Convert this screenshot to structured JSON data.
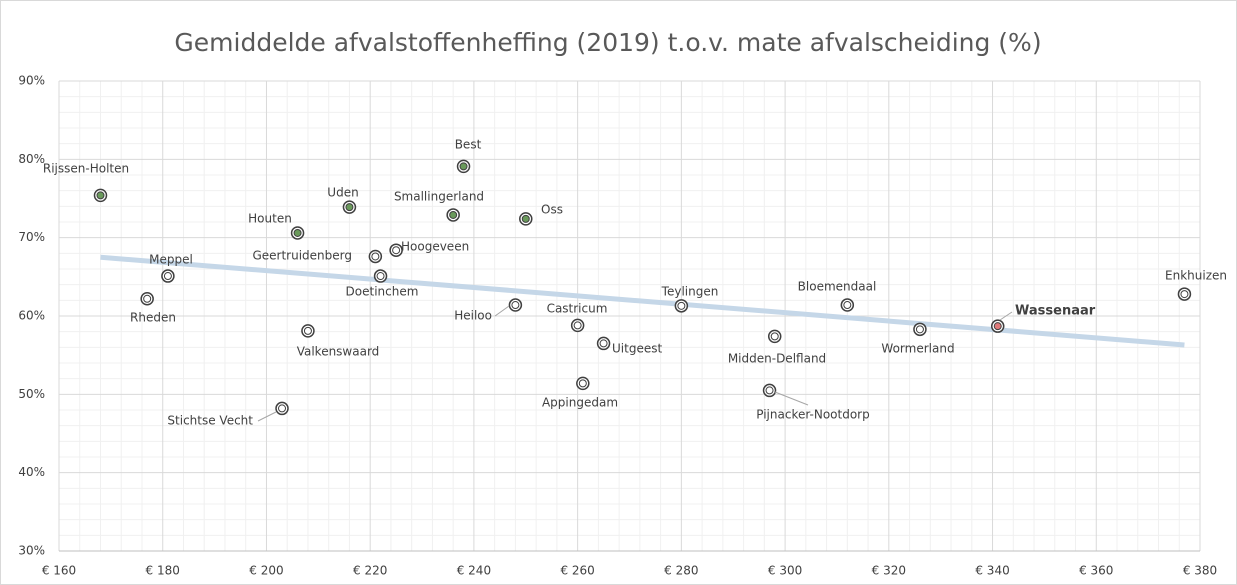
{
  "chart_data": {
    "type": "scatter",
    "title": "Gemiddelde afvalstoffenheffing (2019) t.o.v. mate afvalscheiding (%)",
    "series": [
      {
        "names": [
          "Rijssen-Holten",
          "Rheden",
          "Meppel",
          "Houten",
          "Uden",
          "Valkenswaard",
          "Stichtse Vecht",
          "Geertruidenberg",
          "Hoogeveen",
          "Doetinchem",
          "Smallingerland",
          "Best",
          "Oss",
          "Heiloo",
          "Castricum",
          "Uitgeest",
          "Appingedam",
          "Teylingen",
          "Midden-Delfland",
          "Pijnacker-Nootdorp",
          "Bloemendaal",
          "Wormerland",
          "Wassenaar",
          "Enkhuizen"
        ],
        "x": [
          168,
          177,
          181,
          206,
          216,
          208,
          203,
          221,
          225,
          222,
          236,
          238,
          250,
          248,
          260,
          265,
          261,
          280,
          298,
          297,
          312,
          326,
          341,
          377
        ],
        "values": [
          75.4,
          62.2,
          65.1,
          70.6,
          73.9,
          58.1,
          48.2,
          67.6,
          68.4,
          65.1,
          72.9,
          79.1,
          72.4,
          61.4,
          58.8,
          56.5,
          51.4,
          61.3,
          57.4,
          50.5,
          61.4,
          58.3,
          58.7,
          62.8
        ],
        "colors": [
          "#6a9a5b",
          "#ffffff",
          "#ffffff",
          "#6a9a5b",
          "#6a9a5b",
          "#ffffff",
          "#ffffff",
          "#ffffff",
          "#ffffff",
          "#ffffff",
          "#6a9a5b",
          "#6a9a5b",
          "#6a9a5b",
          "#ffffff",
          "#ffffff",
          "#ffffff",
          "#ffffff",
          "#ffffff",
          "#ffffff",
          "#ffffff",
          "#ffffff",
          "#ffffff",
          "#e07a7a",
          "#ffffff"
        ]
      }
    ],
    "trendline": {
      "x": [
        168,
        377
      ],
      "values": [
        67.5,
        56.3
      ],
      "color": "#c5d7e8"
    },
    "xlim": [
      160,
      380
    ],
    "xticks": [
      {
        "value": 160,
        "label": "€ 160"
      },
      {
        "value": 180,
        "label": "€ 180"
      },
      {
        "value": 200,
        "label": "€ 200"
      },
      {
        "value": 220,
        "label": "€ 220"
      },
      {
        "value": 240,
        "label": "€ 240"
      },
      {
        "value": 260,
        "label": "€ 260"
      },
      {
        "value": 280,
        "label": "€ 280"
      },
      {
        "value": 300,
        "label": "€ 300"
      },
      {
        "value": 320,
        "label": "€ 320"
      },
      {
        "value": 340,
        "label": "€ 340"
      },
      {
        "value": 360,
        "label": "€ 360"
      },
      {
        "value": 380,
        "label": "€ 380"
      }
    ],
    "ylim": [
      30,
      90
    ],
    "yticks": [
      {
        "value": 30,
        "label": "30%"
      },
      {
        "value": 40,
        "label": "40%"
      },
      {
        "value": 50,
        "label": "50%"
      },
      {
        "value": 60,
        "label": "60%"
      },
      {
        "value": 70,
        "label": "70%"
      },
      {
        "value": 80,
        "label": "80%"
      },
      {
        "value": 90,
        "label": "90%"
      }
    ],
    "grid": true
  }
}
